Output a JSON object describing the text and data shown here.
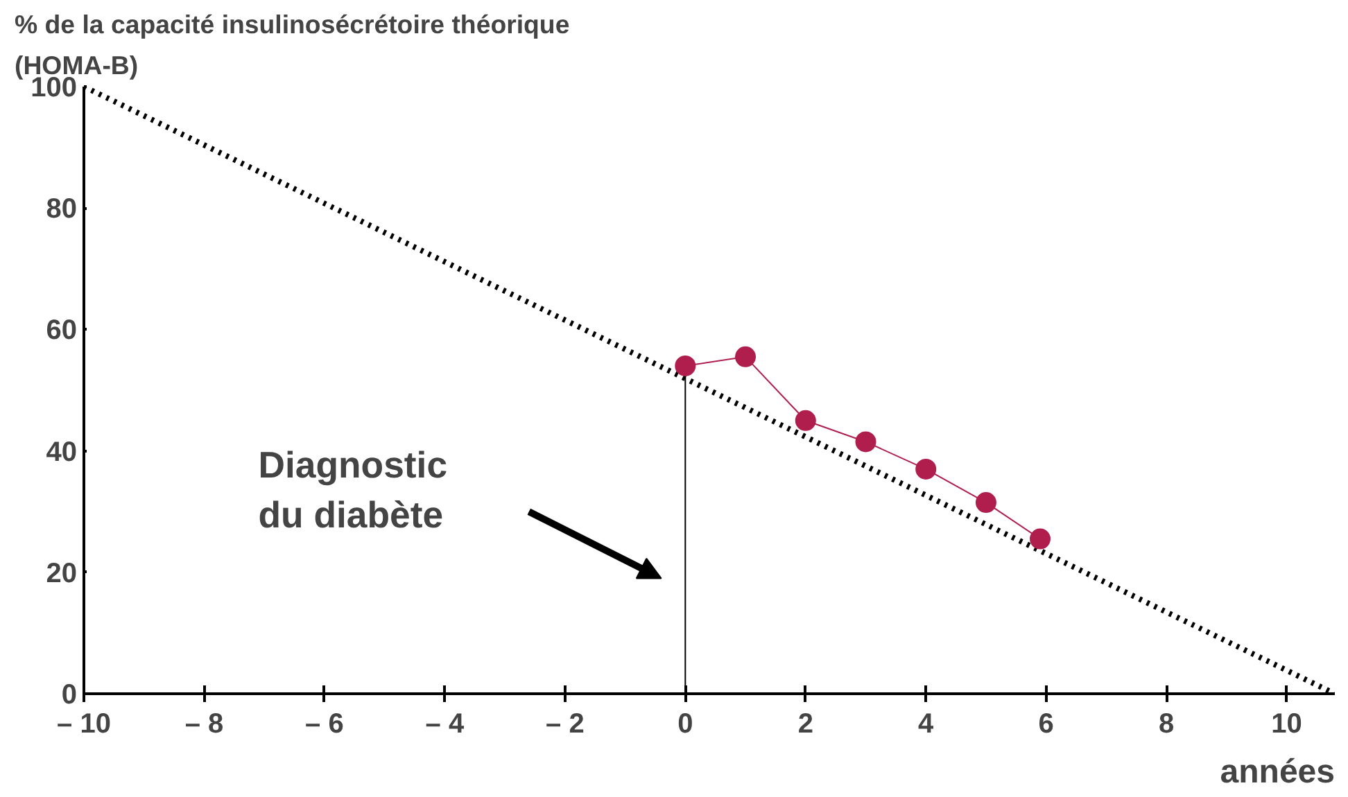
{
  "chart_data": {
    "type": "line",
    "ylabel": "% de la capacité insulinosécrétoire théorique\n(HOMA-B)",
    "xlabel": "années",
    "xlim": [
      -10,
      10.8
    ],
    "ylim": [
      0,
      100
    ],
    "xticks": [
      {
        "value": -10,
        "label": "– 10"
      },
      {
        "value": -8,
        "label": "– 8"
      },
      {
        "value": -6,
        "label": "– 6"
      },
      {
        "value": -4,
        "label": "– 4"
      },
      {
        "value": -2,
        "label": "– 2"
      },
      0,
      2,
      4,
      6,
      8,
      10
    ],
    "yticks": [
      0,
      20,
      40,
      60,
      80,
      100
    ],
    "series": [
      {
        "color": "#000000",
        "line_style": "dotted",
        "marker": "none",
        "x": [
          -10,
          10.8
        ],
        "values": [
          100,
          0
        ]
      },
      {
        "color": "#000000",
        "line_style": "solid",
        "marker": "none",
        "x": [
          0,
          0
        ],
        "values": [
          0,
          54
        ]
      },
      {
        "color": "#b01e4e",
        "line_style": "solid",
        "marker": "circle",
        "x": [
          0,
          1,
          2,
          3,
          4,
          5,
          5.9
        ],
        "values": [
          54,
          55.5,
          45,
          41.5,
          37,
          31.5,
          25.5
        ]
      }
    ],
    "annotations": [
      "Diagnostic\ndu diabète"
    ],
    "grid": false
  }
}
